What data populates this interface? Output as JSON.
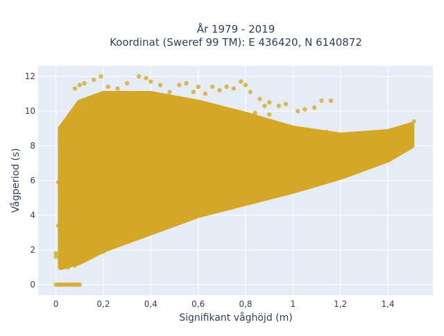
{
  "chart_data": {
    "type": "scatter",
    "title_line1": "År 1979 - 2019",
    "title_line2": "Koordinat (Sweref 99 TM): E 436420, N 6140872",
    "xlabel": "Signifikant våghöjd (m)",
    "ylabel": "Vågperiod (s)",
    "xlim": [
      -0.075,
      1.59
    ],
    "ylim": [
      -0.6,
      12.6
    ],
    "x_ticks": [
      0,
      0.2,
      0.4,
      0.6,
      0.8,
      1,
      1.2,
      1.4
    ],
    "x_tick_labels": [
      "0",
      "0,2",
      "0,4",
      "0,6",
      "0,8",
      "1",
      "1,2",
      "1,4"
    ],
    "y_ticks": [
      0,
      2,
      4,
      6,
      8,
      10,
      12
    ],
    "y_tick_labels": [
      "0",
      "2",
      "4",
      "6",
      "8",
      "10",
      "12"
    ],
    "grid": true,
    "marker_color": "#d4a520",
    "marker_opacity": 0.75,
    "plot_bg": "#e5ecf6",
    "dense_region": {
      "description": "very dense cloud of points",
      "lower_envelope": [
        [
          0.02,
          1.0
        ],
        [
          0.1,
          1.3
        ],
        [
          0.2,
          2.0
        ],
        [
          0.4,
          3.0
        ],
        [
          0.6,
          4.0
        ],
        [
          0.8,
          4.7
        ],
        [
          1.0,
          5.4
        ],
        [
          1.2,
          6.2
        ],
        [
          1.4,
          7.2
        ],
        [
          1.5,
          8.0
        ]
      ],
      "upper_envelope": [
        [
          0.02,
          9.0
        ],
        [
          0.1,
          10.5
        ],
        [
          0.2,
          11.0
        ],
        [
          0.4,
          11.0
        ],
        [
          0.6,
          10.5
        ],
        [
          0.8,
          9.8
        ],
        [
          1.0,
          9.0
        ],
        [
          1.2,
          8.6
        ],
        [
          1.4,
          8.8
        ],
        [
          1.5,
          9.2
        ]
      ]
    },
    "points": [
      [
        0.0,
        0
      ],
      [
        0.01,
        0
      ],
      [
        0.02,
        0
      ],
      [
        0.03,
        0
      ],
      [
        0.04,
        0
      ],
      [
        0.05,
        0
      ],
      [
        0.06,
        0
      ],
      [
        0.07,
        0
      ],
      [
        0.08,
        0
      ],
      [
        0.09,
        0
      ],
      [
        0.1,
        0
      ],
      [
        0.0,
        1.6
      ],
      [
        0.0,
        1.8
      ],
      [
        0.01,
        3.4
      ],
      [
        0.01,
        5.9
      ],
      [
        0.02,
        8.4
      ],
      [
        0.03,
        9.1
      ],
      [
        0.08,
        11.3
      ],
      [
        0.1,
        11.5
      ],
      [
        0.12,
        11.6
      ],
      [
        0.16,
        11.8
      ],
      [
        0.19,
        12.0
      ],
      [
        0.22,
        11.4
      ],
      [
        0.26,
        11.3
      ],
      [
        0.3,
        11.6
      ],
      [
        0.35,
        12.0
      ],
      [
        0.38,
        11.9
      ],
      [
        0.4,
        11.7
      ],
      [
        0.44,
        11.5
      ],
      [
        0.48,
        11.1
      ],
      [
        0.52,
        11.5
      ],
      [
        0.55,
        11.6
      ],
      [
        0.58,
        11.1
      ],
      [
        0.6,
        11.4
      ],
      [
        0.63,
        11.0
      ],
      [
        0.66,
        11.4
      ],
      [
        0.69,
        11.2
      ],
      [
        0.72,
        11.4
      ],
      [
        0.75,
        11.3
      ],
      [
        0.78,
        11.7
      ],
      [
        0.8,
        11.5
      ],
      [
        0.82,
        11.1
      ],
      [
        0.86,
        10.7
      ],
      [
        0.88,
        10.3
      ],
      [
        0.9,
        10.5
      ],
      [
        0.94,
        10.3
      ],
      [
        0.97,
        10.4
      ],
      [
        1.02,
        10.0
      ],
      [
        1.05,
        10.1
      ],
      [
        1.09,
        10.2
      ],
      [
        1.12,
        10.6
      ],
      [
        1.16,
        10.6
      ],
      [
        0.84,
        9.9
      ],
      [
        0.9,
        9.8
      ],
      [
        1.06,
        8.9
      ],
      [
        1.1,
        8.7
      ],
      [
        1.14,
        8.8
      ],
      [
        1.18,
        8.5
      ],
      [
        1.22,
        8.2
      ],
      [
        1.26,
        8.3
      ],
      [
        1.3,
        8.1
      ],
      [
        1.33,
        8.4
      ],
      [
        1.36,
        8.7
      ],
      [
        1.4,
        8.6
      ],
      [
        1.43,
        8.8
      ],
      [
        1.46,
        9.0
      ],
      [
        1.49,
        9.1
      ],
      [
        1.51,
        9.4
      ],
      [
        1.48,
        8.5
      ],
      [
        1.5,
        8.9
      ],
      [
        1.42,
        7.6
      ],
      [
        1.38,
        7.3
      ],
      [
        1.45,
        7.9
      ],
      [
        1.5,
        8.2
      ],
      [
        1.35,
        7.5
      ],
      [
        1.3,
        7.2
      ],
      [
        0.03,
        1.1
      ],
      [
        0.05,
        1.0
      ],
      [
        0.08,
        1.1
      ],
      [
        0.12,
        1.4
      ],
      [
        0.15,
        1.6
      ],
      [
        0.2,
        1.9
      ]
    ]
  }
}
